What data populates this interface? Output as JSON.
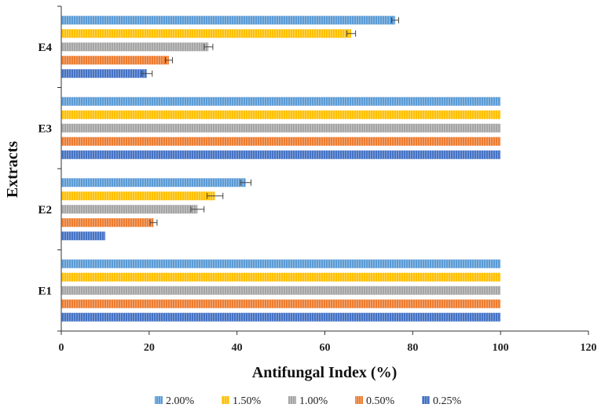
{
  "chart_data": {
    "type": "bar",
    "orientation": "horizontal",
    "title": "",
    "xlabel": "Antifungal Index (%)",
    "ylabel": "Extracts",
    "xlim": [
      0,
      120
    ],
    "xticks": [
      "0",
      "20",
      "40",
      "60",
      "80",
      "100",
      "120"
    ],
    "categories": [
      "E1",
      "E2",
      "E3",
      "E4"
    ],
    "series": [
      {
        "name": "2.00%",
        "color": "#5B9BD5",
        "values": [
          100,
          42,
          100,
          76
        ],
        "errors": [
          0,
          1.2,
          0,
          0.8
        ]
      },
      {
        "name": "1.50%",
        "color": "#FFC000",
        "values": [
          100,
          35,
          100,
          66
        ],
        "errors": [
          0,
          1.8,
          0,
          1.0
        ]
      },
      {
        "name": "1.00%",
        "color": "#A5A5A5",
        "values": [
          100,
          31,
          100,
          33.5
        ],
        "errors": [
          0,
          1.5,
          0,
          1.0
        ]
      },
      {
        "name": "0.50%",
        "color": "#ED7D31",
        "values": [
          100,
          21,
          100,
          24.5
        ],
        "errors": [
          0,
          0.8,
          0,
          0.8
        ]
      },
      {
        "name": "0.25%",
        "color": "#4472C4",
        "values": [
          100,
          10,
          100,
          19.5
        ],
        "errors": [
          0,
          0,
          0,
          1.2
        ]
      }
    ],
    "legend_position": "bottom",
    "grid": false
  }
}
